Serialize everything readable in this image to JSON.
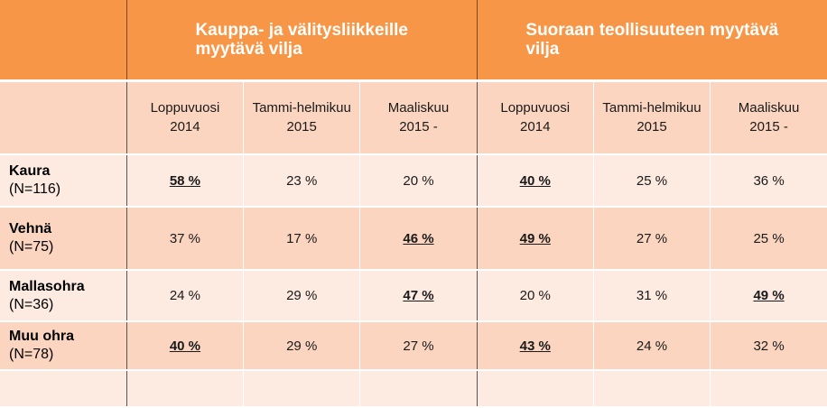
{
  "groups": [
    {
      "title_line1": "Kauppa- ja välitysliikkeille",
      "title_line2": "myytävä vilja"
    },
    {
      "title_line1": "Suoraan teollisuuteen myytävä",
      "title_line2": "vilja"
    }
  ],
  "periods": [
    {
      "line1": "Loppuvuosi",
      "line2": "2014"
    },
    {
      "line1": "Tammi-helmikuu",
      "line2": "2015"
    },
    {
      "line1": "Maaliskuu",
      "line2": "2015 -"
    },
    {
      "line1": "Loppuvuosi",
      "line2": "2014"
    },
    {
      "line1": "Tammi-helmikuu",
      "line2": "2015"
    },
    {
      "line1": "Maaliskuu",
      "line2": "2015 -"
    }
  ],
  "rows": [
    {
      "name": "Kaura",
      "n": "(N=116)",
      "values": [
        "58 %",
        "23 %",
        "20 %",
        "40 %",
        "25 %",
        "36 %"
      ],
      "highlight": [
        true,
        false,
        false,
        true,
        false,
        false
      ]
    },
    {
      "name": "Vehnä",
      "n": "(N=75)",
      "values": [
        "37 %",
        "17 %",
        "46 %",
        "49 %",
        "27 %",
        "25 %"
      ],
      "highlight": [
        false,
        false,
        true,
        true,
        false,
        false
      ]
    },
    {
      "name": "Mallasohra",
      "n": "(N=36)",
      "values": [
        "24 %",
        "29 %",
        "47 %",
        "20 %",
        "31 %",
        "49 %"
      ],
      "highlight": [
        false,
        false,
        true,
        false,
        false,
        true
      ]
    },
    {
      "name": "Muu ohra",
      "n": "(N=78)",
      "values": [
        "40 %",
        "29 %",
        "27 %",
        "43 %",
        "24 %",
        "32 %"
      ],
      "highlight": [
        true,
        false,
        false,
        true,
        false,
        false
      ]
    }
  ],
  "colors": {
    "header": "#f79646",
    "row_dark": "#fbd5c0",
    "row_light": "#fdeae0"
  }
}
